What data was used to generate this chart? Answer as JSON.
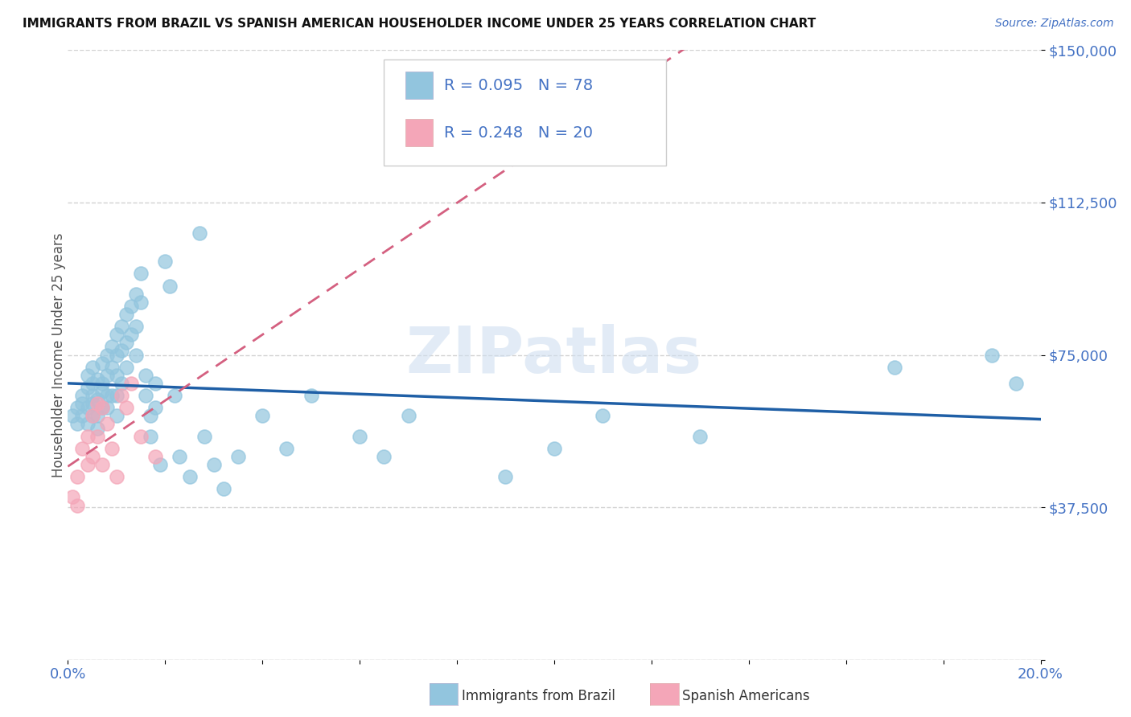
{
  "title": "IMMIGRANTS FROM BRAZIL VS SPANISH AMERICAN HOUSEHOLDER INCOME UNDER 25 YEARS CORRELATION CHART",
  "source": "Source: ZipAtlas.com",
  "ylabel": "Householder Income Under 25 years",
  "xlim": [
    0.0,
    0.2
  ],
  "ylim": [
    0,
    150000
  ],
  "yticks": [
    0,
    37500,
    75000,
    112500,
    150000
  ],
  "ytick_labels": [
    "",
    "$37,500",
    "$75,000",
    "$112,500",
    "$150,000"
  ],
  "legend_brazil_R": "0.095",
  "legend_brazil_N": "78",
  "legend_spanish_R": "0.248",
  "legend_spanish_N": "20",
  "brazil_color": "#92C5DE",
  "spanish_color": "#F4A6B8",
  "brazil_line_color": "#1F5FA6",
  "spanish_line_color": "#D46080",
  "watermark": "ZIPatlas",
  "brazil_x": [
    0.001,
    0.002,
    0.002,
    0.003,
    0.003,
    0.003,
    0.004,
    0.004,
    0.004,
    0.004,
    0.005,
    0.005,
    0.005,
    0.005,
    0.005,
    0.006,
    0.006,
    0.006,
    0.006,
    0.007,
    0.007,
    0.007,
    0.007,
    0.008,
    0.008,
    0.008,
    0.008,
    0.009,
    0.009,
    0.009,
    0.01,
    0.01,
    0.01,
    0.01,
    0.01,
    0.011,
    0.011,
    0.011,
    0.012,
    0.012,
    0.012,
    0.013,
    0.013,
    0.014,
    0.014,
    0.014,
    0.015,
    0.015,
    0.016,
    0.016,
    0.017,
    0.017,
    0.018,
    0.018,
    0.019,
    0.02,
    0.021,
    0.022,
    0.023,
    0.025,
    0.027,
    0.028,
    0.03,
    0.032,
    0.035,
    0.04,
    0.045,
    0.05,
    0.06,
    0.065,
    0.07,
    0.09,
    0.1,
    0.11,
    0.13,
    0.17,
    0.19,
    0.195
  ],
  "brazil_y": [
    60000,
    62000,
    58000,
    65000,
    60000,
    63000,
    67000,
    62000,
    58000,
    70000,
    68000,
    63000,
    60000,
    72000,
    65000,
    69000,
    64000,
    60000,
    57000,
    73000,
    68000,
    62000,
    66000,
    75000,
    70000,
    65000,
    62000,
    77000,
    72000,
    65000,
    80000,
    75000,
    70000,
    65000,
    60000,
    82000,
    76000,
    68000,
    85000,
    78000,
    72000,
    87000,
    80000,
    90000,
    82000,
    75000,
    95000,
    88000,
    70000,
    65000,
    60000,
    55000,
    68000,
    62000,
    48000,
    98000,
    92000,
    65000,
    50000,
    45000,
    105000,
    55000,
    48000,
    42000,
    50000,
    60000,
    52000,
    65000,
    55000,
    50000,
    60000,
    45000,
    52000,
    60000,
    55000,
    72000,
    75000,
    68000
  ],
  "spanish_x": [
    0.001,
    0.002,
    0.002,
    0.003,
    0.004,
    0.004,
    0.005,
    0.005,
    0.006,
    0.006,
    0.007,
    0.007,
    0.008,
    0.009,
    0.01,
    0.011,
    0.012,
    0.013,
    0.015,
    0.018
  ],
  "spanish_y": [
    40000,
    45000,
    38000,
    52000,
    55000,
    48000,
    60000,
    50000,
    63000,
    55000,
    62000,
    48000,
    58000,
    52000,
    45000,
    65000,
    62000,
    68000,
    55000,
    50000
  ]
}
